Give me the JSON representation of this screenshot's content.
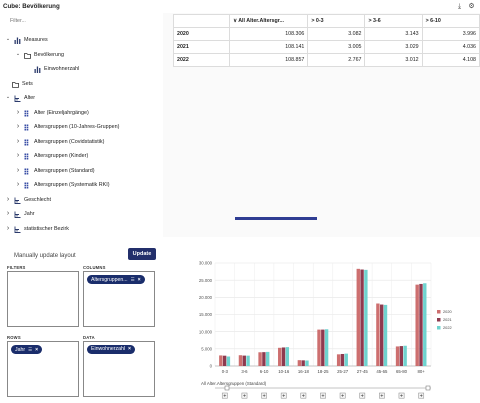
{
  "window": {
    "title": "Cube: Bevölkerung",
    "download_icon": "download-icon",
    "settings_icon": "gear-icon"
  },
  "sidebar": {
    "filter_placeholder": "Filter...",
    "tree": [
      {
        "label": "Measures",
        "level": 0,
        "expanded": true,
        "icon": "measures-icon"
      },
      {
        "label": "Bevölkerung",
        "level": 1,
        "expanded": true,
        "icon": "folder-icon"
      },
      {
        "label": "Einwohnerzahl",
        "level": 2,
        "expanded": null,
        "icon": "measure-icon"
      },
      {
        "label": "Sets",
        "level": 0,
        "expanded": null,
        "icon": "folder-icon"
      },
      {
        "label": "Alter",
        "level": 0,
        "expanded": true,
        "icon": "dimension-icon"
      },
      {
        "label": "Alter (Einzeljahrgänge)",
        "level": 1,
        "expanded": false,
        "icon": "hierarchy-icon"
      },
      {
        "label": "Altersgruppen (10-Jahres-Gruppen)",
        "level": 1,
        "expanded": false,
        "icon": "hierarchy-icon"
      },
      {
        "label": "Altersgruppen (Covidstatistik)",
        "level": 1,
        "expanded": false,
        "icon": "hierarchy-icon"
      },
      {
        "label": "Altersgruppen (Kinder)",
        "level": 1,
        "expanded": false,
        "icon": "hierarchy-icon"
      },
      {
        "label": "Altersgruppen (Standard)",
        "level": 1,
        "expanded": false,
        "icon": "hierarchy-icon"
      },
      {
        "label": "Altersgruppen (Systematik RKI)",
        "level": 1,
        "expanded": false,
        "icon": "hierarchy-icon"
      },
      {
        "label": "Geschlecht",
        "level": 0,
        "expanded": false,
        "icon": "dimension-icon"
      },
      {
        "label": "Jahr",
        "level": 0,
        "expanded": false,
        "icon": "dimension-icon"
      },
      {
        "label": "statistischer Bezirk",
        "level": 0,
        "expanded": false,
        "icon": "dimension-icon"
      }
    ]
  },
  "grid": {
    "header": [
      "∨ All Alter.Altersgr...",
      "> 0-3",
      "> 3-6",
      "> 6-10"
    ],
    "rows": [
      {
        "label": "2020",
        "values": [
          "108.306",
          "3.082",
          "3.143",
          "3.996"
        ]
      },
      {
        "label": "2021",
        "values": [
          "108.141",
          "3.005",
          "3.029",
          "4.036"
        ]
      },
      {
        "label": "2022",
        "values": [
          "108.857",
          "2.767",
          "3.012",
          "4.108"
        ]
      }
    ]
  },
  "layout_panel": {
    "title": "Manually update layout",
    "update_label": "Update",
    "filters_label": "FILTERS",
    "columns_label": "COLUMNS",
    "rows_label": "ROWS",
    "data_label": "DATA",
    "columns_chip": "Altersgruppen...",
    "rows_chip": "Jahr",
    "data_chip": "Einwohnerzahl"
  },
  "chart_data": {
    "type": "bar",
    "categories": [
      "0-3",
      "3-6",
      "6-10",
      "10-16",
      "16-18",
      "18-25",
      "25-27",
      "27-45",
      "45-65",
      "65-80",
      "80+"
    ],
    "series": [
      {
        "name": "2020",
        "color": "#cd6f6f",
        "values": [
          3082,
          3143,
          3996,
          5300,
          1700,
          10600,
          3400,
          28300,
          18200,
          5700,
          23700
        ]
      },
      {
        "name": "2021",
        "color": "#8e3a4f",
        "values": [
          3005,
          3029,
          4036,
          5400,
          1650,
          10600,
          3500,
          28100,
          17900,
          5800,
          23900
        ]
      },
      {
        "name": "2022",
        "color": "#6fd3cf",
        "values": [
          2767,
          3012,
          4108,
          5500,
          1600,
          10700,
          3600,
          28000,
          17800,
          5900,
          24100
        ]
      }
    ],
    "ylim": [
      0,
      30000
    ],
    "yticks": [
      "0",
      "5.000",
      "10.000",
      "15.000",
      "20.000",
      "25.000",
      "30.000"
    ],
    "xlabel": "All Alter.Altersgruppen (Standard)",
    "grid": true,
    "legend_position": "right"
  }
}
